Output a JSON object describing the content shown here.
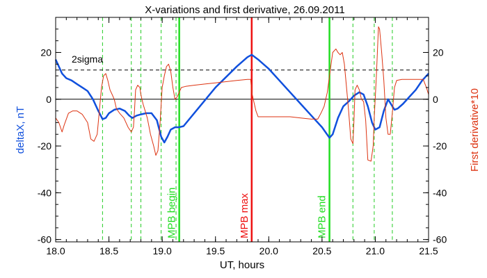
{
  "chart_data": {
    "type": "line",
    "title": "X-variations and first derivative, 26.09.2011",
    "xlabel": "UT, hours",
    "ylabel_left": "deltaX, nT",
    "ylabel_right": "First derivative*10",
    "xlim": [
      18.0,
      21.5
    ],
    "ylim": [
      -61,
      35
    ],
    "x_ticks": [
      "18.0",
      "18.5",
      "19.0",
      "19.5",
      "20.0",
      "20.5",
      "21.0",
      "21.5"
    ],
    "x_tick_values": [
      18.0,
      18.5,
      19.0,
      19.5,
      20.0,
      20.5,
      21.0,
      21.5
    ],
    "y_ticks": [
      "-60",
      "-40",
      "-20",
      "0",
      "20"
    ],
    "y_tick_values": [
      -60,
      -40,
      -20,
      0,
      20
    ],
    "sigma_label": "2sigma",
    "sigma_level": 12.5,
    "zero_line": 0,
    "colors": {
      "deltax": "#1050dd",
      "derivative": "#dd3311",
      "mpb_max": "#ee1111",
      "mpb": "#22dd22",
      "dashed_green": "#22cc22",
      "frame": "#000000"
    },
    "markers": [
      {
        "label": "MPB begin",
        "x": 19.16,
        "color": "#22dd22"
      },
      {
        "label": "MPB max",
        "x": 19.84,
        "color": "#ee1111"
      },
      {
        "label": "MPB end",
        "x": 20.57,
        "color": "#22dd22"
      }
    ],
    "dashed_lines_x": [
      18.44,
      18.71,
      18.8,
      18.99,
      19.13,
      20.79,
      20.99,
      21.16
    ],
    "series": [
      {
        "name": "deltaX, nT",
        "color": "#1050dd",
        "points": [
          [
            18.0,
            17
          ],
          [
            18.03,
            14
          ],
          [
            18.06,
            11
          ],
          [
            18.1,
            9
          ],
          [
            18.15,
            8
          ],
          [
            18.2,
            6.5
          ],
          [
            18.25,
            5
          ],
          [
            18.3,
            3.5
          ],
          [
            18.35,
            0
          ],
          [
            18.4,
            -5
          ],
          [
            18.44,
            -8.5
          ],
          [
            18.47,
            -8
          ],
          [
            18.5,
            -6
          ],
          [
            18.55,
            -4.5
          ],
          [
            18.6,
            -4
          ],
          [
            18.65,
            -5
          ],
          [
            18.69,
            -7
          ],
          [
            18.72,
            -8
          ],
          [
            18.76,
            -7
          ],
          [
            18.8,
            -6.5
          ],
          [
            18.85,
            -6
          ],
          [
            18.9,
            -6
          ],
          [
            18.95,
            -9
          ],
          [
            18.99,
            -16
          ],
          [
            19.02,
            -18.5
          ],
          [
            19.05,
            -16
          ],
          [
            19.08,
            -13
          ],
          [
            19.12,
            -12
          ],
          [
            19.16,
            -12
          ],
          [
            19.2,
            -11.5
          ],
          [
            19.3,
            -6
          ],
          [
            19.4,
            -0.5
          ],
          [
            19.5,
            5
          ],
          [
            19.6,
            9.5
          ],
          [
            19.7,
            14
          ],
          [
            19.8,
            18
          ],
          [
            19.84,
            19
          ],
          [
            19.9,
            17
          ],
          [
            20.0,
            13
          ],
          [
            20.1,
            8
          ],
          [
            20.2,
            3
          ],
          [
            20.3,
            -2
          ],
          [
            20.4,
            -7
          ],
          [
            20.5,
            -12
          ],
          [
            20.57,
            -16.5
          ],
          [
            20.6,
            -15
          ],
          [
            20.65,
            -8
          ],
          [
            20.7,
            -3
          ],
          [
            20.75,
            -1
          ],
          [
            20.8,
            1.5
          ],
          [
            20.85,
            3
          ],
          [
            20.89,
            2
          ],
          [
            20.93,
            -3
          ],
          [
            20.97,
            -10
          ],
          [
            21.0,
            -13
          ],
          [
            21.04,
            -12
          ],
          [
            21.08,
            -5
          ],
          [
            21.12,
            0
          ],
          [
            21.16,
            -3
          ],
          [
            21.18,
            -4.5
          ],
          [
            21.21,
            -4
          ],
          [
            21.26,
            -2
          ],
          [
            21.32,
            1
          ],
          [
            21.38,
            4
          ],
          [
            21.44,
            8
          ],
          [
            21.5,
            11
          ]
        ]
      },
      {
        "name": "First derivative*10",
        "color": "#dd3311",
        "points": [
          [
            18.0,
            -8
          ],
          [
            18.03,
            -10
          ],
          [
            18.06,
            -14
          ],
          [
            18.08,
            -11
          ],
          [
            18.12,
            -6
          ],
          [
            18.16,
            -5
          ],
          [
            18.2,
            -5
          ],
          [
            18.25,
            -6.5
          ],
          [
            18.3,
            -10
          ],
          [
            18.33,
            -17
          ],
          [
            18.36,
            -18
          ],
          [
            18.39,
            -15
          ],
          [
            18.41,
            -5
          ],
          [
            18.43,
            5
          ],
          [
            18.45,
            10
          ],
          [
            18.47,
            11
          ],
          [
            18.49,
            8
          ],
          [
            18.51,
            4
          ],
          [
            18.53,
            2
          ],
          [
            18.55,
            0
          ],
          [
            18.57,
            -4
          ],
          [
            18.6,
            -6
          ],
          [
            18.64,
            -8
          ],
          [
            18.68,
            -12
          ],
          [
            18.71,
            -14
          ],
          [
            18.73,
            -12
          ],
          [
            18.74,
            -5
          ],
          [
            18.75,
            4
          ],
          [
            18.77,
            6
          ],
          [
            18.79,
            5
          ],
          [
            18.8,
            2
          ],
          [
            18.82,
            -2
          ],
          [
            18.86,
            -8
          ],
          [
            18.89,
            -15
          ],
          [
            18.92,
            -20
          ],
          [
            18.94,
            -24
          ],
          [
            18.96,
            -22
          ],
          [
            18.98,
            -10
          ],
          [
            19.0,
            5
          ],
          [
            19.02,
            10
          ],
          [
            19.04,
            14
          ],
          [
            19.06,
            15
          ],
          [
            19.08,
            12
          ],
          [
            19.1,
            5
          ],
          [
            19.12,
            0
          ],
          [
            19.14,
            1
          ],
          [
            19.16,
            3
          ],
          [
            19.18,
            5
          ],
          [
            19.22,
            5.5
          ],
          [
            19.3,
            6
          ],
          [
            19.4,
            6.5
          ],
          [
            19.5,
            7
          ],
          [
            19.6,
            7.5
          ],
          [
            19.7,
            8
          ],
          [
            19.8,
            8.5
          ],
          [
            19.83,
            8.5
          ],
          [
            19.84,
            3
          ],
          [
            19.86,
            -1
          ],
          [
            19.88,
            -5
          ],
          [
            19.9,
            -7.5
          ],
          [
            20.0,
            -7.5
          ],
          [
            20.1,
            -7.5
          ],
          [
            20.2,
            -7.5
          ],
          [
            20.3,
            -8
          ],
          [
            20.4,
            -8.5
          ],
          [
            20.46,
            -8.5
          ],
          [
            20.49,
            -6
          ],
          [
            20.52,
            -3
          ],
          [
            20.55,
            3
          ],
          [
            20.57,
            10
          ],
          [
            20.6,
            20
          ],
          [
            20.63,
            21.5
          ],
          [
            20.65,
            20
          ],
          [
            20.67,
            19
          ],
          [
            20.69,
            20
          ],
          [
            20.71,
            15
          ],
          [
            20.73,
            5
          ],
          [
            20.75,
            -5
          ],
          [
            20.77,
            -17
          ],
          [
            20.79,
            -19
          ],
          [
            20.8,
            -9
          ],
          [
            20.81,
            4
          ],
          [
            20.83,
            6
          ],
          [
            20.85,
            4
          ],
          [
            20.87,
            0
          ],
          [
            20.89,
            -1
          ],
          [
            20.91,
            -9
          ],
          [
            20.93,
            -26
          ],
          [
            20.96,
            -26.5
          ],
          [
            20.98,
            -20
          ],
          [
            20.99,
            -8
          ],
          [
            21.01,
            10
          ],
          [
            21.03,
            31
          ],
          [
            21.04,
            30
          ],
          [
            21.06,
            20
          ],
          [
            21.08,
            8
          ],
          [
            21.1,
            -8
          ],
          [
            21.12,
            -15
          ],
          [
            21.14,
            -15
          ],
          [
            21.16,
            -6
          ],
          [
            21.18,
            5
          ],
          [
            21.2,
            8
          ],
          [
            21.25,
            8.5
          ],
          [
            21.3,
            8.5
          ],
          [
            21.4,
            8.5
          ],
          [
            21.45,
            8.5
          ],
          [
            21.48,
            5
          ],
          [
            21.5,
            2
          ]
        ]
      }
    ]
  }
}
